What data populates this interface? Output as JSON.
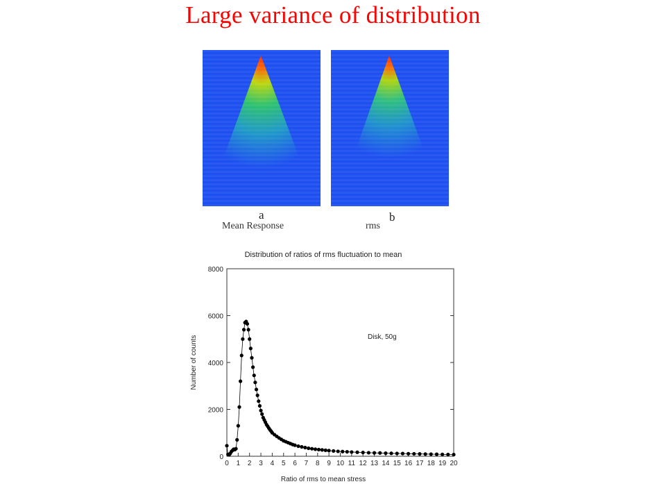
{
  "slide": {
    "title": "Large variance of distribution"
  },
  "panels": [
    {
      "letter": "a",
      "caption": "Mean Response"
    },
    {
      "letter": "b",
      "caption": "rms"
    }
  ],
  "colors": {
    "title": "#ff0000",
    "heatmap_background": "#1e50f0",
    "marker": "#000000"
  },
  "chart_data": [
    {
      "type": "heatmap",
      "title": "",
      "caption": "Mean Response",
      "colormap": "jet"
    },
    {
      "type": "heatmap",
      "title": "",
      "caption": "rms",
      "colormap": "jet"
    },
    {
      "type": "scatter",
      "title": "Distribution of ratios of rms fluctuation to mean",
      "xlabel": "Ratio of rms to mean stress",
      "ylabel": "Number of counts",
      "annotation": "Disk, 50g",
      "xlim": [
        0,
        20
      ],
      "ylim": [
        0,
        8000
      ],
      "xticks": [
        0,
        1,
        2,
        3,
        4,
        5,
        6,
        7,
        8,
        9,
        10,
        11,
        12,
        13,
        14,
        15,
        16,
        17,
        18,
        19,
        20
      ],
      "yticks": [
        0,
        2000,
        4000,
        6000,
        8000
      ],
      "grid": false,
      "connected": true,
      "series": [
        {
          "x": [
            0.0,
            0.1,
            0.2,
            0.3,
            0.4,
            0.5,
            0.6,
            0.7,
            0.8,
            0.9,
            1.0,
            1.1,
            1.2,
            1.3,
            1.4,
            1.5,
            1.6,
            1.7,
            1.8,
            1.9,
            2.0,
            2.1,
            2.2,
            2.3,
            2.4,
            2.5,
            2.6,
            2.7,
            2.8,
            2.9,
            3.0,
            3.1,
            3.2,
            3.3,
            3.4,
            3.5,
            3.6,
            3.7,
            3.8,
            3.9,
            4.0,
            4.2,
            4.4,
            4.6,
            4.8,
            5.0,
            5.2,
            5.4,
            5.6,
            5.8,
            6.0,
            6.3,
            6.6,
            6.9,
            7.2,
            7.5,
            7.8,
            8.1,
            8.4,
            8.7,
            9.0,
            9.4,
            9.8,
            10.2,
            10.6,
            11.0,
            11.5,
            12.0,
            12.5,
            13.0,
            13.5,
            14.0,
            14.5,
            15.0,
            15.5,
            16.0,
            16.5,
            17.0,
            17.5,
            18.0,
            18.5,
            19.0,
            19.5,
            20.0
          ],
          "y": [
            450,
            80,
            60,
            120,
            200,
            250,
            300,
            280,
            320,
            700,
            1300,
            2100,
            3200,
            4300,
            5000,
            5400,
            5700,
            5750,
            5650,
            5400,
            5000,
            4600,
            4200,
            3800,
            3450,
            3150,
            2850,
            2600,
            2350,
            2150,
            1950,
            1800,
            1650,
            1550,
            1450,
            1350,
            1280,
            1200,
            1130,
            1070,
            1000,
            920,
            850,
            780,
            720,
            660,
            620,
            580,
            540,
            500,
            470,
            430,
            400,
            370,
            340,
            320,
            300,
            285,
            270,
            255,
            240,
            225,
            210,
            200,
            190,
            180,
            170,
            160,
            150,
            145,
            140,
            130,
            125,
            120,
            115,
            110,
            105,
            100,
            95,
            90,
            85,
            80,
            75,
            70
          ]
        }
      ]
    }
  ]
}
